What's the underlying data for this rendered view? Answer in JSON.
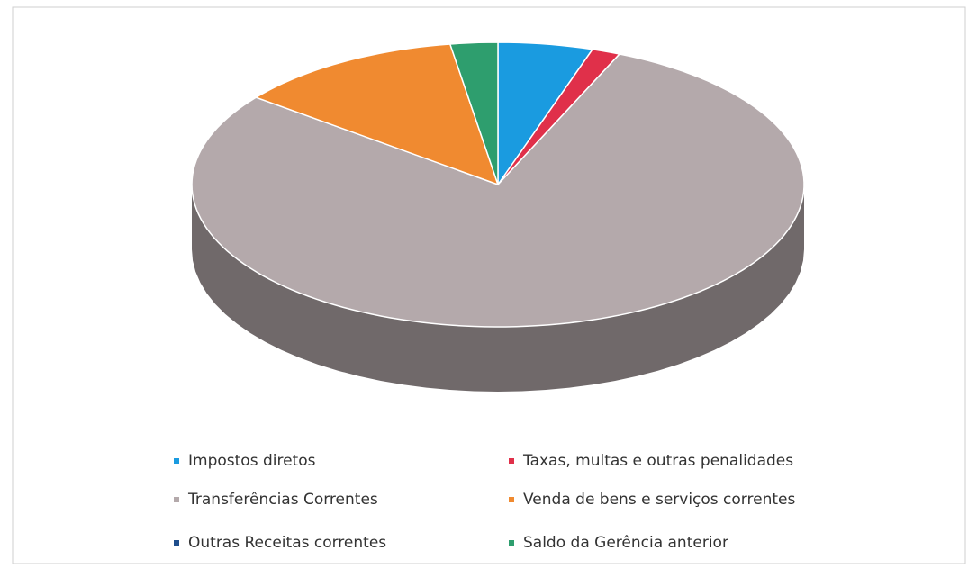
{
  "chart_data": {
    "type": "pie3d",
    "categories": [
      "Impostos diretos",
      "Taxas, multas e outras penalidades",
      "Transferências Correntes",
      "Venda de bens e serviços correntes",
      "Outras Receitas correntes",
      "Saldo da Gerência anterior"
    ],
    "values": [
      5,
      1.5,
      79,
      12,
      0,
      2.5
    ],
    "colors": [
      "#1a9be0",
      "#e0304a",
      "#b4a9ab",
      "#f08a30",
      "#1f4e8c",
      "#2e9e6e"
    ],
    "legend": "bottom"
  }
}
